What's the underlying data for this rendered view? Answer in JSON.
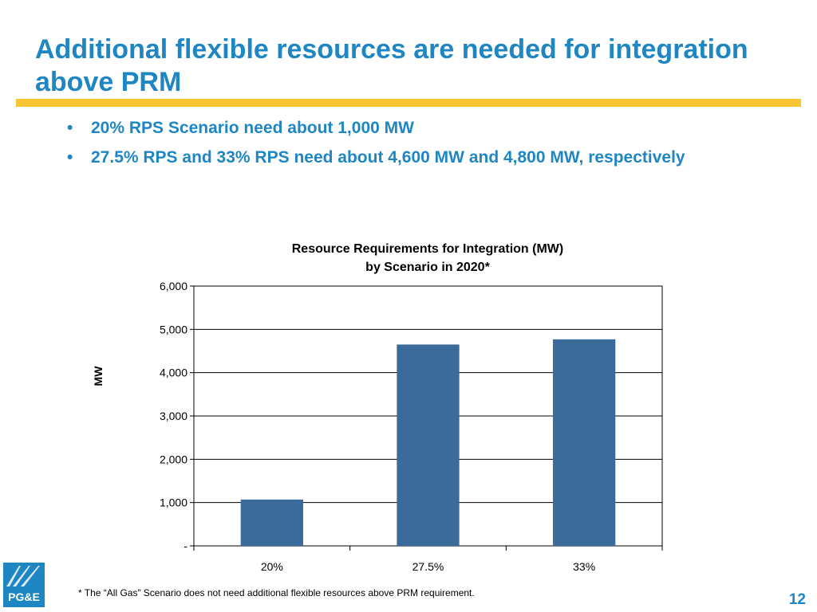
{
  "slide": {
    "title": "Additional flexible resources are needed for integration above PRM",
    "bullet_symbol": "•",
    "bullets": [
      "20% RPS Scenario need about 1,000 MW",
      "27.5% RPS and 33% RPS need about 4,600 MW and 4,800 MW, respectively"
    ],
    "footnote": "* The “All Gas” Scenario does not need additional flexible resources above PRM requirement.",
    "page_number": "12",
    "logo_text": "PG&E"
  },
  "colors": {
    "title": "#1f86c4",
    "rule": "#f6c531",
    "bar": "#3a6b9b",
    "gridline": "#000000",
    "logo_blue": "#1f86c4"
  },
  "chart_data": {
    "type": "bar",
    "title_lines": [
      "Resource Requirements for Integration (MW)",
      "by Scenario in 2020*"
    ],
    "ylabel": "MW",
    "xlabel": "",
    "categories": [
      "20%",
      "27.5%",
      "33%"
    ],
    "values": [
      1070,
      4650,
      4770
    ],
    "ylim": [
      0,
      6000
    ],
    "yticks": [
      0,
      1000,
      2000,
      3000,
      4000,
      5000,
      6000
    ],
    "ytick_labels": [
      "-",
      "1,000",
      "2,000",
      "3,000",
      "4,000",
      "5,000",
      "6,000"
    ],
    "grid": true,
    "legend": "none"
  }
}
